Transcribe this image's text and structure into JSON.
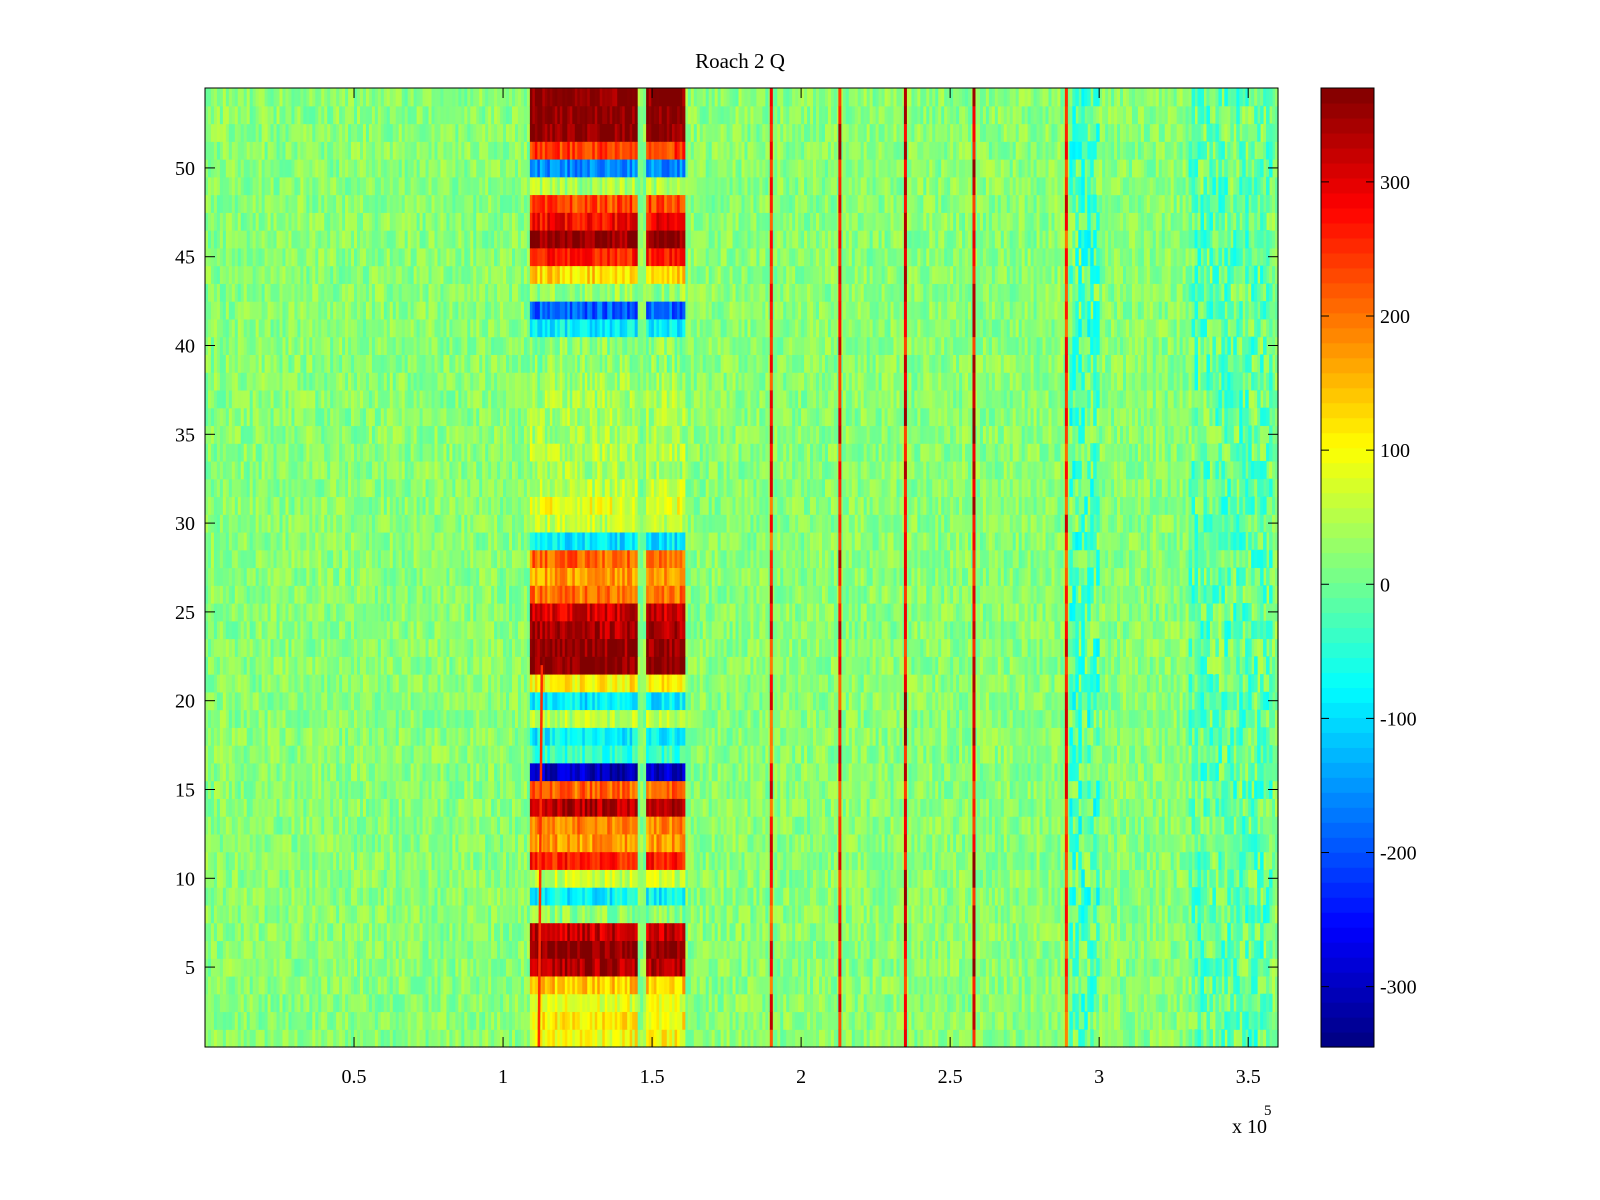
{
  "chart_data": {
    "type": "heatmap",
    "title": "Roach 2 Q",
    "xlabel": "",
    "ylabel": "",
    "x_exponent": {
      "base": "x 10",
      "power": "5"
    },
    "xlim": [
      0,
      3.6
    ],
    "ylim": [
      0.5,
      54.5
    ],
    "x_ticks": [
      {
        "value": 0.5,
        "label": "0.5"
      },
      {
        "value": 1,
        "label": "1"
      },
      {
        "value": 1.5,
        "label": "1.5"
      },
      {
        "value": 2,
        "label": "2"
      },
      {
        "value": 2.5,
        "label": "2.5"
      },
      {
        "value": 3,
        "label": "3"
      },
      {
        "value": 3.5,
        "label": "3.5"
      }
    ],
    "y_ticks": [
      {
        "value": 5,
        "label": "5"
      },
      {
        "value": 10,
        "label": "10"
      },
      {
        "value": 15,
        "label": "15"
      },
      {
        "value": 20,
        "label": "20"
      },
      {
        "value": 25,
        "label": "25"
      },
      {
        "value": 30,
        "label": "30"
      },
      {
        "value": 35,
        "label": "35"
      },
      {
        "value": 40,
        "label": "40"
      },
      {
        "value": 45,
        "label": "45"
      },
      {
        "value": 50,
        "label": "50"
      }
    ],
    "colorbar": {
      "colormap": "jet",
      "clim": [
        -345,
        370
      ],
      "ticks": [
        {
          "value": 300,
          "label": "300"
        },
        {
          "value": 200,
          "label": "200"
        },
        {
          "value": 100,
          "label": "100"
        },
        {
          "value": 0,
          "label": "0"
        },
        {
          "value": -100,
          "label": "-100"
        },
        {
          "value": -200,
          "label": "-200"
        },
        {
          "value": -300,
          "label": "-300"
        }
      ]
    },
    "rows": 54,
    "background_value": 20,
    "blocks": [
      {
        "x_range": [
          1.09,
          1.45
        ],
        "segments": [
          [
            1.09,
            1.45
          ],
          [
            1.48,
            1.61
          ]
        ]
      },
      {
        "x_range": [
          1.48,
          1.61
        ]
      }
    ],
    "block_row_values": [
      {
        "row": 1,
        "value": 100
      },
      {
        "row": 2,
        "value": 110
      },
      {
        "row": 3,
        "value": 80
      },
      {
        "row": 4,
        "value": 140
      },
      {
        "row": 5,
        "value": 340
      },
      {
        "row": 6,
        "value": 370
      },
      {
        "row": 7,
        "value": 320
      },
      {
        "row": 8,
        "value": 20
      },
      {
        "row": 9,
        "value": -80
      },
      {
        "row": 10,
        "value": 60
      },
      {
        "row": 11,
        "value": 260
      },
      {
        "row": 12,
        "value": 170
      },
      {
        "row": 13,
        "value": 190
      },
      {
        "row": 14,
        "value": 330
      },
      {
        "row": 15,
        "value": 210
      },
      {
        "row": 16,
        "value": -300
      },
      {
        "row": 17,
        "value": -40
      },
      {
        "row": 18,
        "value": -80
      },
      {
        "row": 19,
        "value": 50
      },
      {
        "row": 20,
        "value": -90
      },
      {
        "row": 21,
        "value": 110
      },
      {
        "row": 22,
        "value": 370
      },
      {
        "row": 23,
        "value": 360
      },
      {
        "row": 24,
        "value": 340
      },
      {
        "row": 25,
        "value": 310
      },
      {
        "row": 26,
        "value": 200
      },
      {
        "row": 27,
        "value": 170
      },
      {
        "row": 28,
        "value": 210
      },
      {
        "row": 29,
        "value": -90
      },
      {
        "row": 30,
        "value": 60
      },
      {
        "row": 31,
        "value": 90
      },
      {
        "row": 32,
        "value": 50
      },
      {
        "row": 33,
        "value": 40
      },
      {
        "row": 34,
        "value": 50
      },
      {
        "row": 35,
        "value": 40
      },
      {
        "row": 36,
        "value": 40
      },
      {
        "row": 37,
        "value": 40
      },
      {
        "row": 38,
        "value": 30
      },
      {
        "row": 39,
        "value": 20
      },
      {
        "row": 40,
        "value": 20
      },
      {
        "row": 41,
        "value": -80
      },
      {
        "row": 42,
        "value": -190
      },
      {
        "row": 43,
        "value": 30
      },
      {
        "row": 44,
        "value": 130
      },
      {
        "row": 45,
        "value": 260
      },
      {
        "row": 46,
        "value": 360
      },
      {
        "row": 47,
        "value": 280
      },
      {
        "row": 48,
        "value": 230
      },
      {
        "row": 49,
        "value": 40
      },
      {
        "row": 50,
        "value": -160
      },
      {
        "row": 51,
        "value": 240
      },
      {
        "row": 52,
        "value": 370
      },
      {
        "row": 53,
        "value": 370
      },
      {
        "row": 54,
        "value": 370
      }
    ],
    "vertical_lines": [
      {
        "x": 1.9,
        "value": 260
      },
      {
        "x": 2.13,
        "value": 280
      },
      {
        "x": 2.35,
        "value": 290
      },
      {
        "x": 2.58,
        "value": 300
      },
      {
        "x": 2.89,
        "value": 250
      }
    ],
    "thin_diagonal": {
      "x_start": 1.12,
      "x_end": 1.13,
      "value": 250
    },
    "cyan_patch": {
      "x_range": [
        2.9,
        3.0
      ],
      "value": -60
    },
    "right_patch": {
      "x_range": [
        3.3,
        3.58
      ],
      "value": -40
    }
  }
}
